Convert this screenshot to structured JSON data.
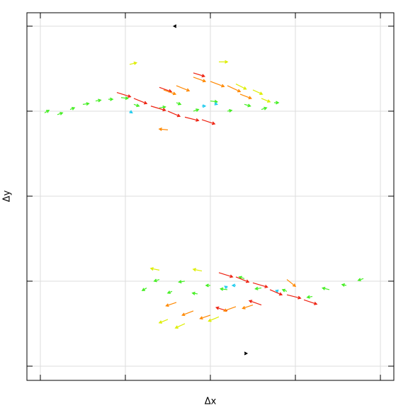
{
  "chart_data": {
    "type": "quiver",
    "x_label": "Δx",
    "y_label": "Δy",
    "xlim": [
      -2.158,
      2.158
    ],
    "ylim": [
      -2.167,
      2.158
    ],
    "xticks": [
      -2,
      -1,
      0,
      1,
      2
    ],
    "yticks": [
      -2,
      -1,
      0,
      1,
      2
    ],
    "grid": true,
    "series": [
      {
        "color": "#44ee22",
        "x": [
          -1.95,
          -1.8,
          -1.65,
          -1.5,
          -1.35,
          -1.2,
          -1.05,
          -0.9,
          -0.6,
          -0.4,
          -0.2,
          0.0,
          0.2,
          0.4,
          0.6,
          0.75,
          -0.75,
          -0.6,
          -0.45,
          -0.3,
          -0.15,
          0.0,
          0.2,
          0.4,
          0.6,
          0.9,
          1.2,
          1.4,
          1.6,
          1.8
        ],
        "y": [
          0.98,
          0.96,
          1.02,
          1.08,
          1.12,
          1.14,
          1.16,
          1.08,
          1.04,
          1.1,
          1.0,
          1.12,
          1.0,
          1.08,
          1.02,
          1.1,
          -1.08,
          -0.98,
          -1.12,
          -1.0,
          -1.15,
          -1.05,
          -1.1,
          -0.97,
          -1.08,
          -1.12,
          -1.18,
          -1.1,
          -1.05,
          -0.97
        ],
        "u": [
          0.05,
          0.06,
          0.05,
          0.07,
          0.06,
          0.05,
          0.08,
          0.06,
          0.07,
          0.05,
          0.06,
          0.08,
          0.05,
          0.07,
          0.06,
          0.05,
          -0.05,
          -0.06,
          -0.05,
          -0.07,
          -0.06,
          -0.05,
          -0.08,
          -0.06,
          -0.07,
          -0.05,
          -0.06,
          -0.08,
          -0.05,
          -0.06
        ],
        "v": [
          0.03,
          0.02,
          0.02,
          0.01,
          0.01,
          0.0,
          -0.01,
          -0.02,
          0.01,
          -0.02,
          0.02,
          -0.01,
          0.01,
          -0.02,
          0.02,
          0.0,
          -0.03,
          -0.02,
          -0.02,
          -0.01,
          0.01,
          0.0,
          0.01,
          0.02,
          -0.01,
          0.02,
          -0.01,
          0.02,
          0.01,
          -0.02
        ]
      },
      {
        "color": "#22ccee",
        "x": [
          -0.95,
          -0.1,
          0.05,
          0.2,
          0.3,
          0.8
        ],
        "y": [
          1.0,
          1.06,
          1.09,
          -1.08,
          -1.05,
          -1.12
        ],
        "u": [
          0.03,
          0.04,
          0.03,
          -0.03,
          -0.04,
          -0.03
        ],
        "v": [
          -0.02,
          0.0,
          -0.01,
          0.02,
          0.0,
          0.01
        ]
      },
      {
        "color": "#ee2211",
        "x": [
          -1.1,
          -0.9,
          -0.7,
          -0.5,
          -0.3,
          -0.1,
          -0.2,
          -0.6,
          0.1,
          0.3,
          0.5,
          0.7,
          0.9,
          1.1,
          0.2,
          0.6
        ],
        "y": [
          1.22,
          1.15,
          1.06,
          1.0,
          0.93,
          0.9,
          1.45,
          1.28,
          -0.9,
          -0.95,
          -1.02,
          -1.1,
          -1.16,
          -1.22,
          -1.35,
          -1.28
        ],
        "u": [
          0.16,
          0.15,
          0.17,
          0.14,
          0.16,
          0.15,
          0.13,
          0.14,
          0.16,
          0.15,
          0.17,
          0.14,
          0.16,
          0.15,
          -0.13,
          -0.14
        ],
        "v": [
          -0.05,
          -0.06,
          -0.05,
          -0.06,
          -0.04,
          -0.05,
          -0.04,
          -0.05,
          -0.05,
          -0.06,
          -0.05,
          -0.06,
          -0.04,
          -0.05,
          0.04,
          0.05
        ]
      },
      {
        "color": "#ff8800",
        "x": [
          -0.4,
          -0.2,
          0.0,
          0.2,
          0.35,
          -0.5,
          -0.55,
          -0.4,
          -0.2,
          0.0,
          0.3,
          0.5,
          0.9
        ],
        "y": [
          1.3,
          1.4,
          1.35,
          1.3,
          1.2,
          0.78,
          1.25,
          -1.25,
          -1.35,
          -1.4,
          -1.3,
          -1.28,
          -0.98
        ],
        "u": [
          0.15,
          0.14,
          0.16,
          0.15,
          0.13,
          -0.1,
          0.14,
          -0.12,
          -0.13,
          -0.12,
          -0.14,
          -0.12,
          0.1
        ],
        "v": [
          -0.06,
          -0.05,
          -0.06,
          -0.07,
          -0.05,
          0.01,
          -0.05,
          -0.04,
          -0.05,
          -0.04,
          -0.05,
          -0.04,
          -0.08
        ]
      },
      {
        "color": "#ddee00",
        "x": [
          -0.95,
          0.1,
          0.3,
          0.5,
          0.6,
          -0.5,
          -0.3,
          -0.1,
          0.1,
          -0.6
        ],
        "y": [
          1.55,
          1.58,
          1.32,
          1.25,
          1.15,
          -1.45,
          -1.5,
          -0.88,
          -1.42,
          -0.87
        ],
        "u": [
          0.08,
          0.1,
          0.12,
          0.11,
          0.1,
          -0.1,
          -0.11,
          -0.1,
          -0.12,
          -0.1
        ],
        "v": [
          0.02,
          0.0,
          -0.06,
          -0.05,
          -0.04,
          -0.04,
          -0.05,
          0.02,
          -0.05,
          0.02
        ]
      },
      {
        "color": "#000000",
        "x": [
          -0.4,
          0.4
        ],
        "y": [
          2.0,
          -1.85
        ],
        "u": [
          -0.03,
          0.03
        ],
        "v": [
          0.0,
          0.0
        ]
      }
    ]
  }
}
